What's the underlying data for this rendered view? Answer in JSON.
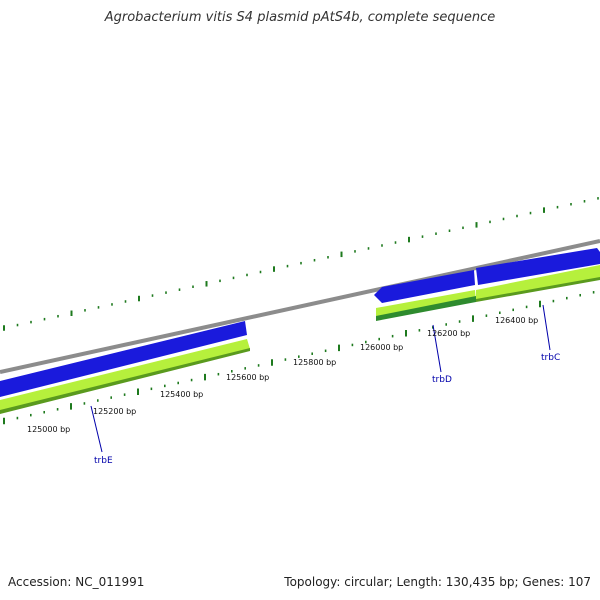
{
  "title": "Agrobacterium vitis S4 plasmid pAtS4b, complete sequence",
  "footer": {
    "accession": "Accession: NC_011991",
    "summary": "Topology: circular; Length: 130,435 bp; Genes: 107"
  },
  "colors": {
    "backbone": "#8c8c8c",
    "strand_forward": "#1a1adc",
    "strand_reverse": "#b6f03c",
    "strand_reverse_dark": "#2e8b2e",
    "tick": "#1e7a1e",
    "gene_label": "#0000aa"
  },
  "ticks": {
    "labels": [
      "125000 bp",
      "125200 bp",
      "125400 bp",
      "125600 bp",
      "125800 bp",
      "126000 bp",
      "126200 bp",
      "126400 bp"
    ]
  },
  "genes": [
    {
      "name": "trbE"
    },
    {
      "name": "trbD"
    },
    {
      "name": "trbC"
    }
  ]
}
